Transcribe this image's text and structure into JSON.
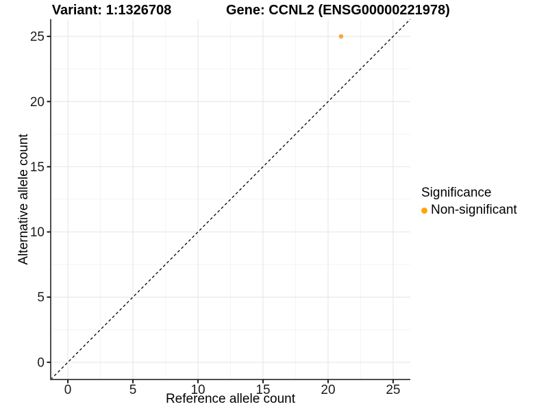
{
  "titles": {
    "variant": "Variant: 1:1326708",
    "gene": "Gene: CCNL2 (ENSG00000221978)"
  },
  "chart_data": {
    "type": "scatter",
    "xlabel": "Reference allele count",
    "ylabel": "Alternative allele count",
    "xlim": [
      -1.32,
      26.32
    ],
    "ylim": [
      -1.32,
      26.32
    ],
    "xticks": [
      0,
      5,
      10,
      15,
      20,
      25
    ],
    "yticks": [
      0,
      5,
      10,
      15,
      20,
      25
    ],
    "minor_ticks": [
      2.5,
      7.5,
      12.5,
      17.5,
      22.5
    ],
    "grid": true,
    "points": [
      {
        "x": 21,
        "y": 25,
        "series": "Non-significant"
      }
    ],
    "reference_line": {
      "type": "identity",
      "style": "dashed",
      "color": "#000000"
    },
    "legend": {
      "title": "Significance",
      "position": "right",
      "items": [
        {
          "label": "Non-significant",
          "color": "#FFA500"
        }
      ]
    },
    "colors": {
      "point": "#FAA43A",
      "legend_dot": "#FFA500",
      "grid_major": "#E8E8E8",
      "grid_minor": "#F4F4F4",
      "axis_line": "#4D4D4D",
      "tick_mark": "#1a1a1a"
    }
  }
}
